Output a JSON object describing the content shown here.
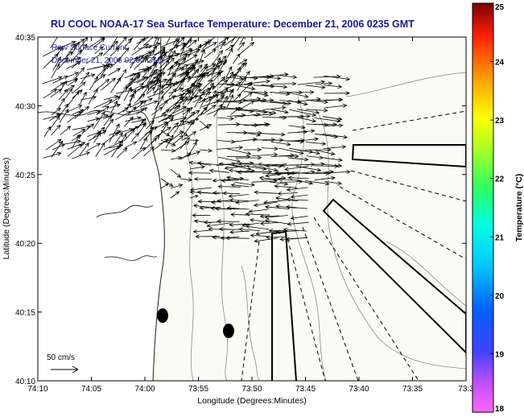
{
  "chart_data": {
    "type": "vector-field-map",
    "title": "RU COOL  NOAA-17 Sea Surface Temperature:  December 21, 2006 0235 GMT",
    "xlabel": "Longitude (Degrees:Minutes)",
    "ylabel": "Latitude (Degrees:Minutes)",
    "x_ticks": [
      "74:10",
      "74:05",
      "74:00",
      "73:55",
      "73:50",
      "73:45",
      "73:40",
      "73:35",
      "73:3"
    ],
    "y_ticks": [
      "40:35",
      "40:30",
      "40:25",
      "40:20",
      "40:15",
      "40:10"
    ],
    "xlim": [
      -74.1667,
      -73.5
    ],
    "ylim": [
      40.1667,
      40.5833
    ],
    "subtitle_lines": [
      "Raw Surface Current",
      "December 21, 2006 02:00 GMT"
    ],
    "scale_label": "50 cm/s",
    "colorbar": {
      "label": "Temperature (°C)",
      "range": [
        18,
        25
      ],
      "ticks": [
        "18",
        "19",
        "20",
        "21",
        "22",
        "23",
        "24",
        "25"
      ]
    }
  },
  "colors": {
    "title": "#1a1a8c",
    "subtitle": "#2a2a9a",
    "vectors": "#000000",
    "contours": "#888888",
    "coast": "#222222"
  }
}
